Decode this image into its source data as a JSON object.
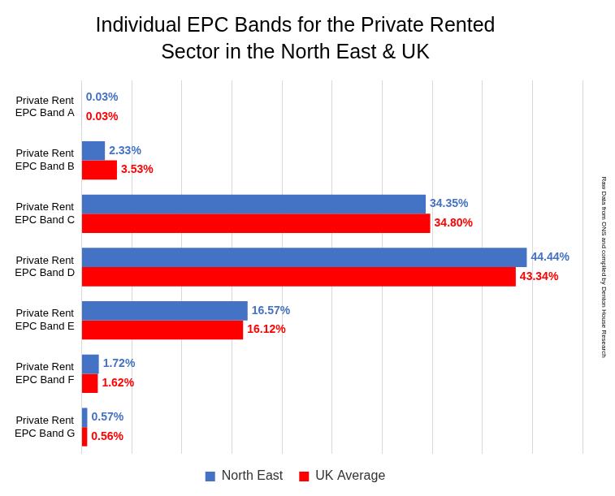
{
  "chart_data": {
    "type": "bar",
    "orientation": "horizontal",
    "title": [
      "Individual EPC Bands for the Private Rented",
      "Sector in the North East & UK"
    ],
    "annotations": [
      "Raw Data from ONS and compiled by Denton House Research"
    ],
    "categories": [
      [
        "Private Rent",
        "EPC Band A"
      ],
      [
        "Private Rent",
        "EPC Band B"
      ],
      [
        "Private Rent",
        "EPC Band C"
      ],
      [
        "Private Rent",
        "EPC Band D"
      ],
      [
        "Private Rent",
        "EPC Band E"
      ],
      [
        "Private Rent",
        "EPC Band F"
      ],
      [
        "Private Rent",
        "EPC Band G"
      ]
    ],
    "series": [
      {
        "name": "North East",
        "color": "#4472C4",
        "values": [
          0.03,
          2.33,
          34.35,
          44.44,
          16.57,
          1.72,
          0.57
        ],
        "value_labels": [
          "0.03%",
          "2.33%",
          "34.35%",
          "44.44%",
          "16.57%",
          "1.72%",
          "0.57%"
        ]
      },
      {
        "name": "UK Average",
        "color": "#FF0000",
        "values": [
          0.03,
          3.53,
          34.8,
          43.34,
          16.12,
          1.62,
          0.56
        ],
        "value_labels": [
          "0.03%",
          "3.53%",
          "34.80%",
          "43.34%",
          "16.12%",
          "1.62%",
          "0.56%"
        ]
      }
    ],
    "xlim": [
      0,
      50
    ],
    "xticks": [
      0,
      5,
      10,
      15,
      20,
      25,
      30,
      35,
      40,
      45,
      50
    ],
    "grid": true,
    "legend": "bottom",
    "data_labels": true,
    "tick_labels": "y"
  }
}
